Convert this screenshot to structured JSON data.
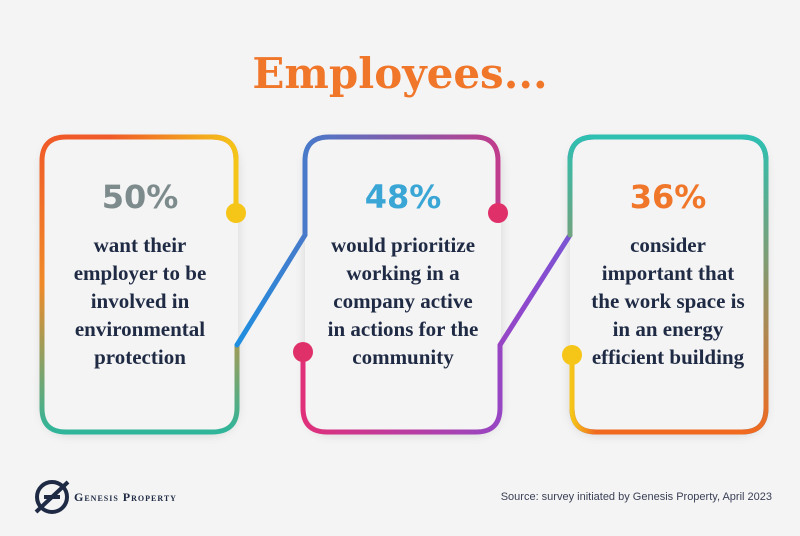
{
  "header": {
    "title": "Employees..."
  },
  "cards": [
    {
      "stat": "50%",
      "lines": [
        "want their",
        "employer to be",
        "involved in",
        "environmental",
        "protection"
      ]
    },
    {
      "stat": "48%",
      "lines": [
        "would prioritize",
        "working in a",
        "company active",
        "in actions for the",
        "community"
      ]
    },
    {
      "stat": "36%",
      "lines": [
        "consider",
        "important that",
        "the work space is",
        "in an energy",
        "efficient building"
      ]
    }
  ],
  "footer": {
    "brand": "Genesis Property",
    "source": "Source: survey initiated by Genesis Property, April 2023"
  }
}
